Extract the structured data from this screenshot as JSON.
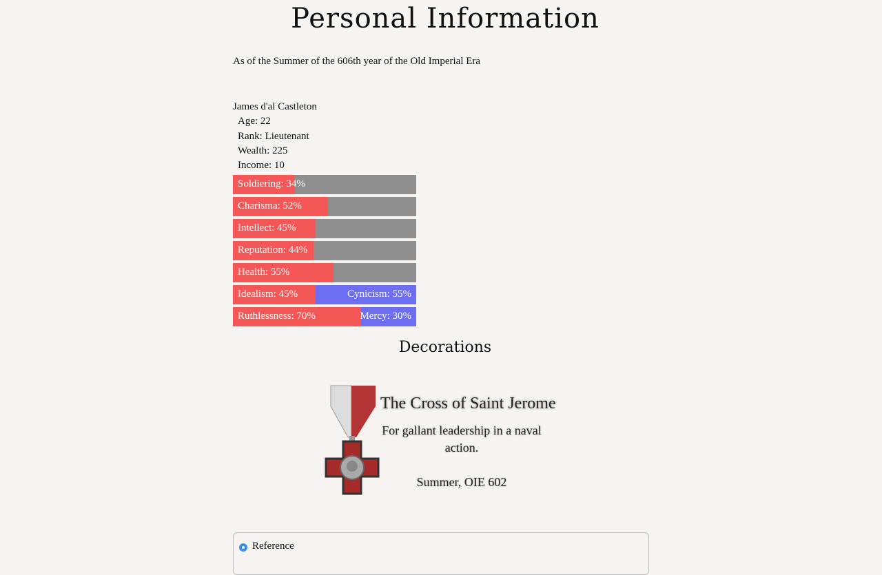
{
  "title": "Personal Information",
  "subtitle": "As of the Summer of the 606th year of the Old Imperial Era",
  "character": {
    "name": "James d'al Castleton",
    "age": "Age: 22",
    "rank": "Rank: Lieutenant",
    "wealth": "Wealth: 225",
    "income": "Income: 10"
  },
  "stats": [
    {
      "label": "Soldiering: 34%",
      "value": 34
    },
    {
      "label": "Charisma: 52%",
      "value": 52
    },
    {
      "label": "Intellect: 45%",
      "value": 45
    },
    {
      "label": "Reputation: 44%",
      "value": 44
    },
    {
      "label": "Health: 55%",
      "value": 55
    }
  ],
  "dual_stats": [
    {
      "left_label": "Idealism: 45%",
      "left_value": 45,
      "right_label": "Cynicism: 55%",
      "right_value": 55
    },
    {
      "left_label": "Ruthlessness: 70%",
      "left_value": 70,
      "right_label": "Mercy: 30%",
      "right_value": 30
    }
  ],
  "colors": {
    "fill": "#f55656",
    "empty": "#8f8f8f",
    "opposite": "#6e6ef2",
    "radio": "#3b8ee8"
  },
  "decorations": {
    "heading": "Decorations",
    "items": [
      {
        "name": "The Cross of Saint Jerome",
        "citation": "For gallant leadership in a naval action.",
        "date": "Summer, OIE 602",
        "icon": "medal-cross-icon"
      }
    ]
  },
  "reference": {
    "label": "Reference"
  }
}
